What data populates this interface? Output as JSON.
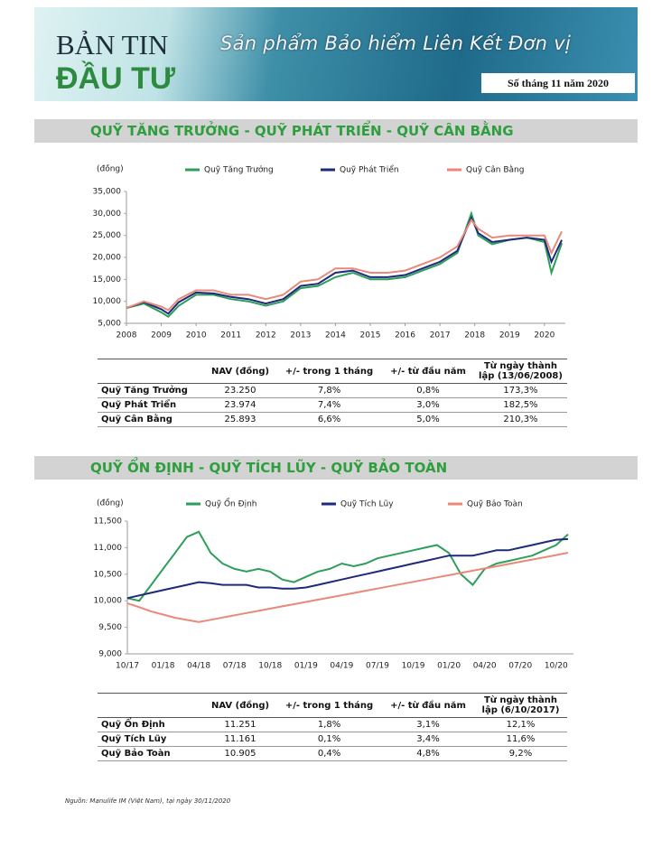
{
  "header": {
    "title_line1": "BẢN TIN",
    "title_line2": "ĐẦU TƯ",
    "subtitle": "Sản phẩm Bảo hiểm Liên Kết Đơn vị",
    "issue": "Số tháng 11 năm 2020"
  },
  "sections": [
    {
      "heading": "QUỸ TĂNG TRƯỞNG - QUỸ PHÁT TRIỂN - QUỸ CÂN BẰNG",
      "table": {
        "columns": [
          "NAV (đồng)",
          "+/- trong 1 tháng",
          "+/- từ đầu năm",
          "Từ ngày thành lập (13/06/2008)"
        ],
        "rows": [
          [
            "Quỹ Tăng Trưởng",
            "23.250",
            "7,8%",
            "0,8%",
            "173,3%"
          ],
          [
            "Quỹ Phát Triển",
            "23.974",
            "7,4%",
            "3,0%",
            "182,5%"
          ],
          [
            "Quỹ Cân Bằng",
            "25.893",
            "6,6%",
            "5,0%",
            "210,3%"
          ]
        ]
      }
    },
    {
      "heading": "QUỸ ỔN ĐỊNH - QUỸ TÍCH LŨY - QUỸ BẢO TOÀN",
      "table": {
        "columns": [
          "NAV (đồng)",
          "+/- trong 1 tháng",
          "+/- từ đầu năm",
          "Từ ngày thành lập (6/10/2017)"
        ],
        "rows": [
          [
            "Quỹ Ổn Định",
            "11.251",
            "1,8%",
            "3,1%",
            "12,1%"
          ],
          [
            "Quỹ Tích Lũy",
            "11.161",
            "0,1%",
            "3,4%",
            "11,6%"
          ],
          [
            "Quỹ Bảo Toàn",
            "10.905",
            "0,4%",
            "4,8%",
            "9,2%"
          ]
        ]
      }
    }
  ],
  "chart_data": [
    {
      "type": "line",
      "y_label": "(đồng)",
      "legend": "top",
      "grid": false,
      "x": [
        2008,
        2008.5,
        2009,
        2009.2,
        2009.5,
        2010,
        2010.5,
        2011,
        2011.5,
        2012,
        2012.5,
        2013,
        2013.5,
        2014,
        2014.5,
        2015,
        2015.5,
        2016,
        2016.5,
        2017,
        2017.5,
        2017.9,
        2018.1,
        2018.5,
        2019,
        2019.5,
        2020,
        2020.2,
        2020.5
      ],
      "xlim": [
        2008,
        2020.6
      ],
      "xticks": [
        2008,
        2009,
        2010,
        2011,
        2012,
        2013,
        2014,
        2015,
        2016,
        2017,
        2018,
        2019,
        2020
      ],
      "ylim": [
        5000,
        35000
      ],
      "yticks": [
        {
          "value": 5000,
          "label": "5,000"
        },
        {
          "value": 10000,
          "label": "10,000"
        },
        {
          "value": 15000,
          "label": "15,000"
        },
        {
          "value": 20000,
          "label": "20,000"
        },
        {
          "value": 25000,
          "label": "25,000"
        },
        {
          "value": 30000,
          "label": "30,000"
        },
        {
          "value": 35000,
          "label": "35,000"
        }
      ],
      "series": [
        {
          "name": "Quỹ Tăng Trưởng",
          "color": "#2e9e5b",
          "values": [
            8500,
            9500,
            7500,
            6500,
            9000,
            11500,
            11500,
            10500,
            10000,
            9000,
            10000,
            13000,
            13500,
            15500,
            16500,
            15000,
            15000,
            15500,
            17000,
            18500,
            21000,
            30000,
            25000,
            23000,
            24000,
            24500,
            23500,
            16500,
            23250
          ]
        },
        {
          "name": "Quỹ Phát Triển",
          "color": "#1f2a7a",
          "values": [
            8500,
            9800,
            8200,
            7200,
            9800,
            12000,
            11800,
            11000,
            10500,
            9500,
            10500,
            13500,
            14000,
            16500,
            17000,
            15500,
            15500,
            16000,
            17500,
            19000,
            21500,
            29000,
            25500,
            23500,
            24000,
            24500,
            24000,
            19000,
            23974
          ]
        },
        {
          "name": "Quỹ Cân Bằng",
          "color": "#e8897a",
          "values": [
            8500,
            10000,
            8800,
            8000,
            10500,
            12500,
            12500,
            11500,
            11500,
            10500,
            11500,
            14500,
            15000,
            17500,
            17500,
            16500,
            16500,
            17000,
            18500,
            20000,
            22500,
            28500,
            26500,
            24500,
            25000,
            25000,
            25000,
            21000,
            25893
          ]
        }
      ]
    },
    {
      "type": "line",
      "y_label": "(đồng)",
      "legend": "top",
      "grid": false,
      "categories": [
        "10/17",
        null,
        null,
        "01/18",
        null,
        null,
        "04/18",
        null,
        null,
        "07/18",
        null,
        null,
        "10/18",
        null,
        null,
        "01/19",
        null,
        null,
        "04/19",
        null,
        null,
        "07/19",
        null,
        null,
        "10/19",
        null,
        null,
        "01/20",
        null,
        null,
        "04/20",
        null,
        null,
        "07/20",
        null,
        null,
        "10/20",
        null
      ],
      "ylim": [
        9000,
        11500
      ],
      "yticks": [
        {
          "value": 9000,
          "label": "9,000"
        },
        {
          "value": 9500,
          "label": "9,500"
        },
        {
          "value": 10000,
          "label": "10,000"
        },
        {
          "value": 10500,
          "label": "10,500"
        },
        {
          "value": 11000,
          "label": "11,000"
        },
        {
          "value": 11500,
          "label": "11,500"
        }
      ],
      "series": [
        {
          "name": "Quỹ Ổn Định",
          "color": "#2e9e5b",
          "values": [
            10050,
            10000,
            10300,
            10600,
            10900,
            11200,
            11300,
            10900,
            10700,
            10600,
            10550,
            10600,
            10550,
            10400,
            10350,
            10450,
            10550,
            10600,
            10700,
            10650,
            10700,
            10800,
            10850,
            10900,
            10950,
            11000,
            11050,
            10900,
            10500,
            10300,
            10600,
            10700,
            10750,
            10800,
            10850,
            10950,
            11050,
            11251
          ]
        },
        {
          "name": "Quỹ Tích Lũy",
          "color": "#1f2a7a",
          "values": [
            10050,
            10100,
            10150,
            10200,
            10250,
            10300,
            10350,
            10330,
            10300,
            10300,
            10300,
            10250,
            10250,
            10230,
            10230,
            10250,
            10300,
            10350,
            10400,
            10450,
            10500,
            10550,
            10600,
            10650,
            10700,
            10750,
            10800,
            10850,
            10850,
            10850,
            10900,
            10950,
            10950,
            11000,
            11050,
            11100,
            11150,
            11161
          ]
        },
        {
          "name": "Quỹ Bảo Toàn",
          "color": "#e8897a",
          "values": [
            9950,
            9880,
            9800,
            9740,
            9680,
            9640,
            9600,
            9642,
            9684,
            9726,
            9768,
            9810,
            9852,
            9894,
            9936,
            9978,
            10020,
            10062,
            10104,
            10146,
            10188,
            10230,
            10272,
            10314,
            10356,
            10398,
            10440,
            10482,
            10524,
            10566,
            10608,
            10650,
            10692,
            10734,
            10776,
            10818,
            10860,
            10905
          ]
        }
      ]
    }
  ],
  "source": "Nguồn: Manulife IM (Việt Nam), tại ngày 30/11/2020"
}
